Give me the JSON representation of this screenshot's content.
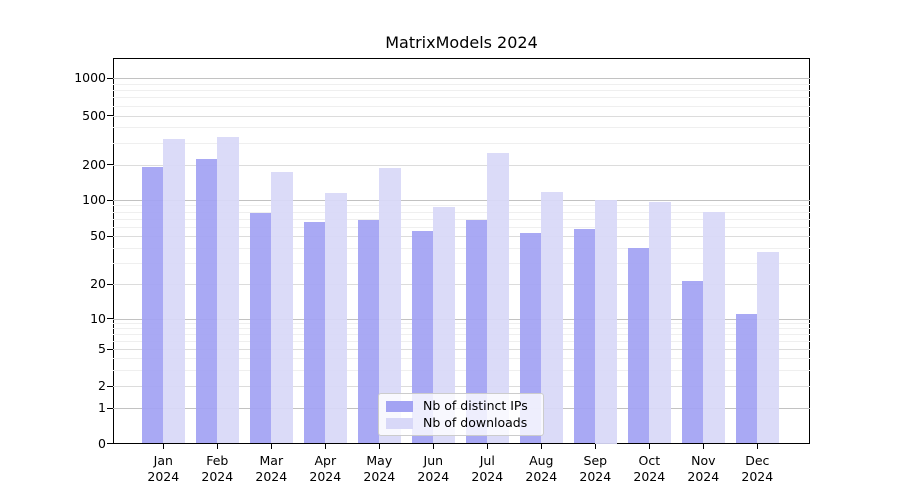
{
  "title": "MatrixModels 2024",
  "chart_data": {
    "type": "bar",
    "title": "MatrixModels 2024",
    "x_tick_labels": [
      [
        "Jan",
        "2024"
      ],
      [
        "Feb",
        "2024"
      ],
      [
        "Mar",
        "2024"
      ],
      [
        "Apr",
        "2024"
      ],
      [
        "May",
        "2024"
      ],
      [
        "Jun",
        "2024"
      ],
      [
        "Jul",
        "2024"
      ],
      [
        "Aug",
        "2024"
      ],
      [
        "Sep",
        "2024"
      ],
      [
        "Oct",
        "2024"
      ],
      [
        "Nov",
        "2024"
      ],
      [
        "Dec",
        "2024"
      ]
    ],
    "series": [
      {
        "name": "Nb of distinct IPs",
        "color": "#a3a3f3",
        "values": [
          190,
          220,
          78,
          65,
          68,
          55,
          68,
          53,
          57,
          40,
          21,
          11
        ]
      },
      {
        "name": "Nb of downloads",
        "color": "#d8d8f8",
        "values": [
          325,
          335,
          172,
          115,
          186,
          88,
          250,
          117,
          100,
          97,
          79,
          37
        ]
      }
    ],
    "yscale": "symlog",
    "y_ticks": [
      0,
      1,
      2,
      5,
      10,
      20,
      50,
      100,
      200,
      500,
      1000
    ],
    "ylim": [
      0,
      1430
    ],
    "xlabel": "",
    "ylabel": "",
    "grid": true,
    "legend_position": "lower center"
  }
}
